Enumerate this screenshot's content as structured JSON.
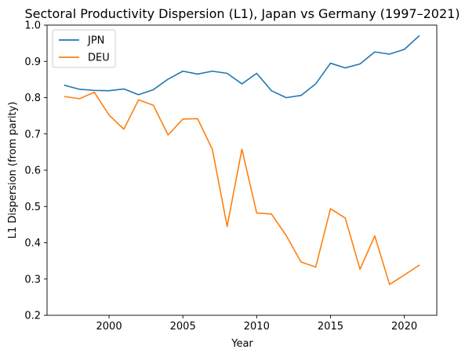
{
  "chart_data": {
    "type": "line",
    "title": "Sectoral Productivity Dispersion (L1), Japan vs Germany (1997–2021)",
    "xlabel": "Year",
    "ylabel": "L1 Dispersion (from parity)",
    "xlim": [
      1995.8,
      2022.2
    ],
    "ylim": [
      0.2,
      1.0
    ],
    "x_ticks": [
      2000,
      2005,
      2010,
      2015,
      2020
    ],
    "y_ticks": [
      0.2,
      0.3,
      0.4,
      0.5,
      0.6,
      0.7,
      0.8,
      0.9,
      1.0
    ],
    "x_tick_labels": [
      "2000",
      "2005",
      "2010",
      "2015",
      "2020"
    ],
    "y_tick_labels": [
      "0.2",
      "0.3",
      "0.4",
      "0.5",
      "0.6",
      "0.7",
      "0.8",
      "0.9",
      "1.0"
    ],
    "grid": false,
    "legend_position": "top-left",
    "x": [
      1997,
      1998,
      1999,
      2000,
      2001,
      2002,
      2003,
      2004,
      2005,
      2006,
      2007,
      2008,
      2009,
      2010,
      2011,
      2012,
      2013,
      2014,
      2015,
      2016,
      2017,
      2018,
      2019,
      2020,
      2021
    ],
    "series": [
      {
        "name": "JPN",
        "color": "#1f77b4",
        "values": [
          0.834,
          0.823,
          0.82,
          0.819,
          0.824,
          0.808,
          0.822,
          0.851,
          0.873,
          0.865,
          0.873,
          0.867,
          0.838,
          0.867,
          0.819,
          0.8,
          0.806,
          0.838,
          0.895,
          0.882,
          0.893,
          0.926,
          0.92,
          0.933,
          0.97
        ]
      },
      {
        "name": "DEU",
        "color": "#ff7f0e",
        "values": [
          0.803,
          0.797,
          0.815,
          0.752,
          0.713,
          0.794,
          0.779,
          0.697,
          0.741,
          0.742,
          0.657,
          0.445,
          0.658,
          0.482,
          0.479,
          0.42,
          0.347,
          0.333,
          0.494,
          0.468,
          0.327,
          0.419,
          0.285,
          0.311,
          0.338
        ]
      }
    ]
  }
}
